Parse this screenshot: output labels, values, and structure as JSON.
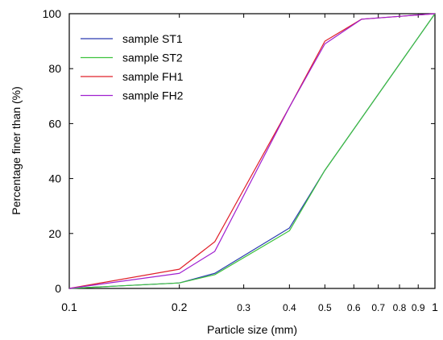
{
  "chart_data": {
    "type": "line",
    "title": "",
    "xlabel": "Particle size (mm)",
    "ylabel": "Percentage finer than (%)",
    "x_scale": "log",
    "xlim": [
      0.1,
      1
    ],
    "ylim": [
      0,
      100
    ],
    "grid": false,
    "legend_position": "top-left",
    "x_ticks": [
      0.1,
      0.2,
      0.3,
      0.4,
      0.5,
      0.6,
      0.7,
      0.8,
      0.9,
      1
    ],
    "x_tick_labels": [
      "0.1",
      "0.2",
      "0.3",
      "0.4",
      "0.5",
      "0.6",
      "0.7",
      "0.8",
      "0.9",
      "1"
    ],
    "y_ticks": [
      0,
      20,
      40,
      60,
      80,
      100
    ],
    "y_tick_labels": [
      "0",
      "20",
      "40",
      "60",
      "80",
      "100"
    ],
    "series": [
      {
        "name": "sample ST1",
        "color": "#2a3bb0",
        "points": [
          [
            0.1,
            0
          ],
          [
            0.2,
            2
          ],
          [
            0.25,
            5.5
          ],
          [
            0.4,
            22
          ],
          [
            0.5,
            43
          ],
          [
            1.0,
            100
          ]
        ]
      },
      {
        "name": "sample ST2",
        "color": "#3dc23d",
        "points": [
          [
            0.1,
            0
          ],
          [
            0.2,
            2
          ],
          [
            0.25,
            5
          ],
          [
            0.4,
            21
          ],
          [
            0.5,
            43
          ],
          [
            1.0,
            100
          ]
        ]
      },
      {
        "name": "sample FH1",
        "color": "#e0202a",
        "points": [
          [
            0.1,
            0
          ],
          [
            0.2,
            7
          ],
          [
            0.25,
            17
          ],
          [
            0.4,
            66
          ],
          [
            0.5,
            90
          ],
          [
            0.63,
            98
          ],
          [
            1.0,
            100
          ]
        ]
      },
      {
        "name": "sample FH2",
        "color": "#a020d0",
        "points": [
          [
            0.1,
            0
          ],
          [
            0.2,
            5.5
          ],
          [
            0.25,
            13.5
          ],
          [
            0.4,
            66
          ],
          [
            0.5,
            89
          ],
          [
            0.63,
            98
          ],
          [
            1.0,
            100
          ]
        ]
      }
    ]
  }
}
